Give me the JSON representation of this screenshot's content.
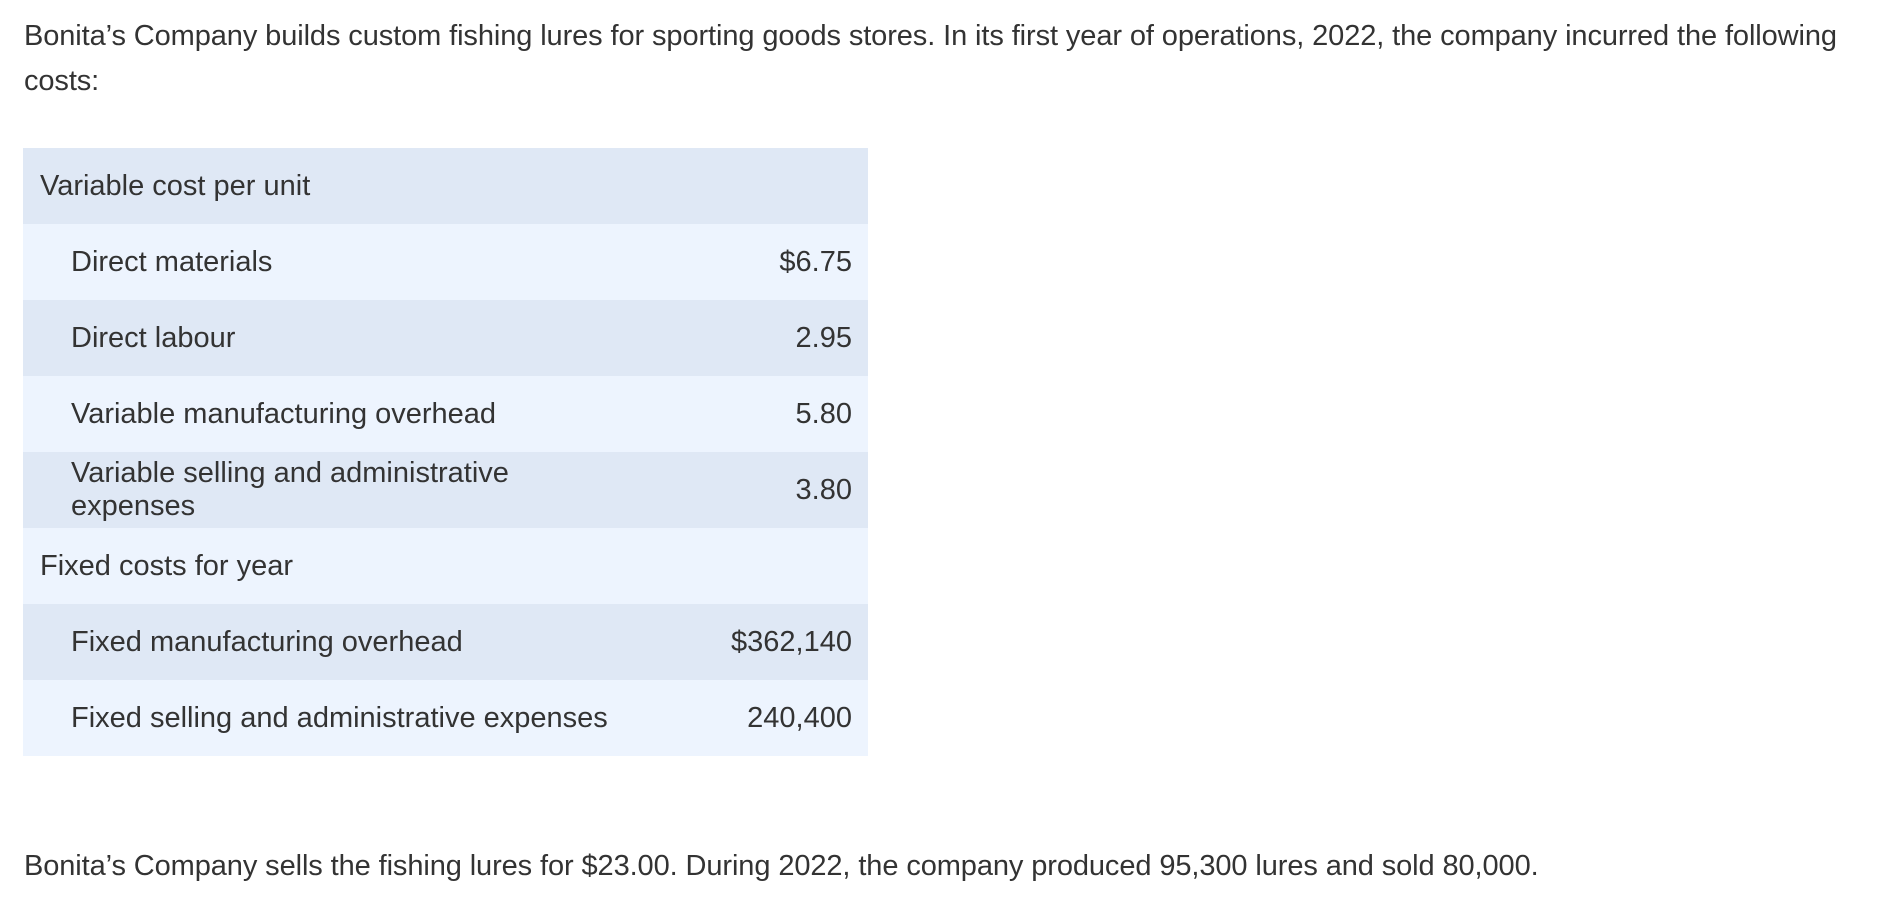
{
  "intro_text": "Bonita’s Company builds custom fishing lures for sporting goods stores. In its first year of operations, 2022, the company incurred the following costs:",
  "table": {
    "variable_header": "Variable cost per unit",
    "variable_items": [
      {
        "label": "Direct materials",
        "amount": "$6.75"
      },
      {
        "label": "Direct labour",
        "amount": "2.95"
      },
      {
        "label": "Variable manufacturing overhead",
        "amount": "5.80"
      },
      {
        "label": "Variable selling and administrative expenses",
        "amount": "3.80"
      }
    ],
    "fixed_header": "Fixed costs for year",
    "fixed_items": [
      {
        "label": "Fixed manufacturing overhead",
        "amount": "$362,140"
      },
      {
        "label": "Fixed selling and administrative expenses",
        "amount": "240,400"
      }
    ]
  },
  "outro_text": "Bonita’s Company sells the fishing lures for $23.00. During 2022, the company produced 95,300 lures and sold 80,000."
}
